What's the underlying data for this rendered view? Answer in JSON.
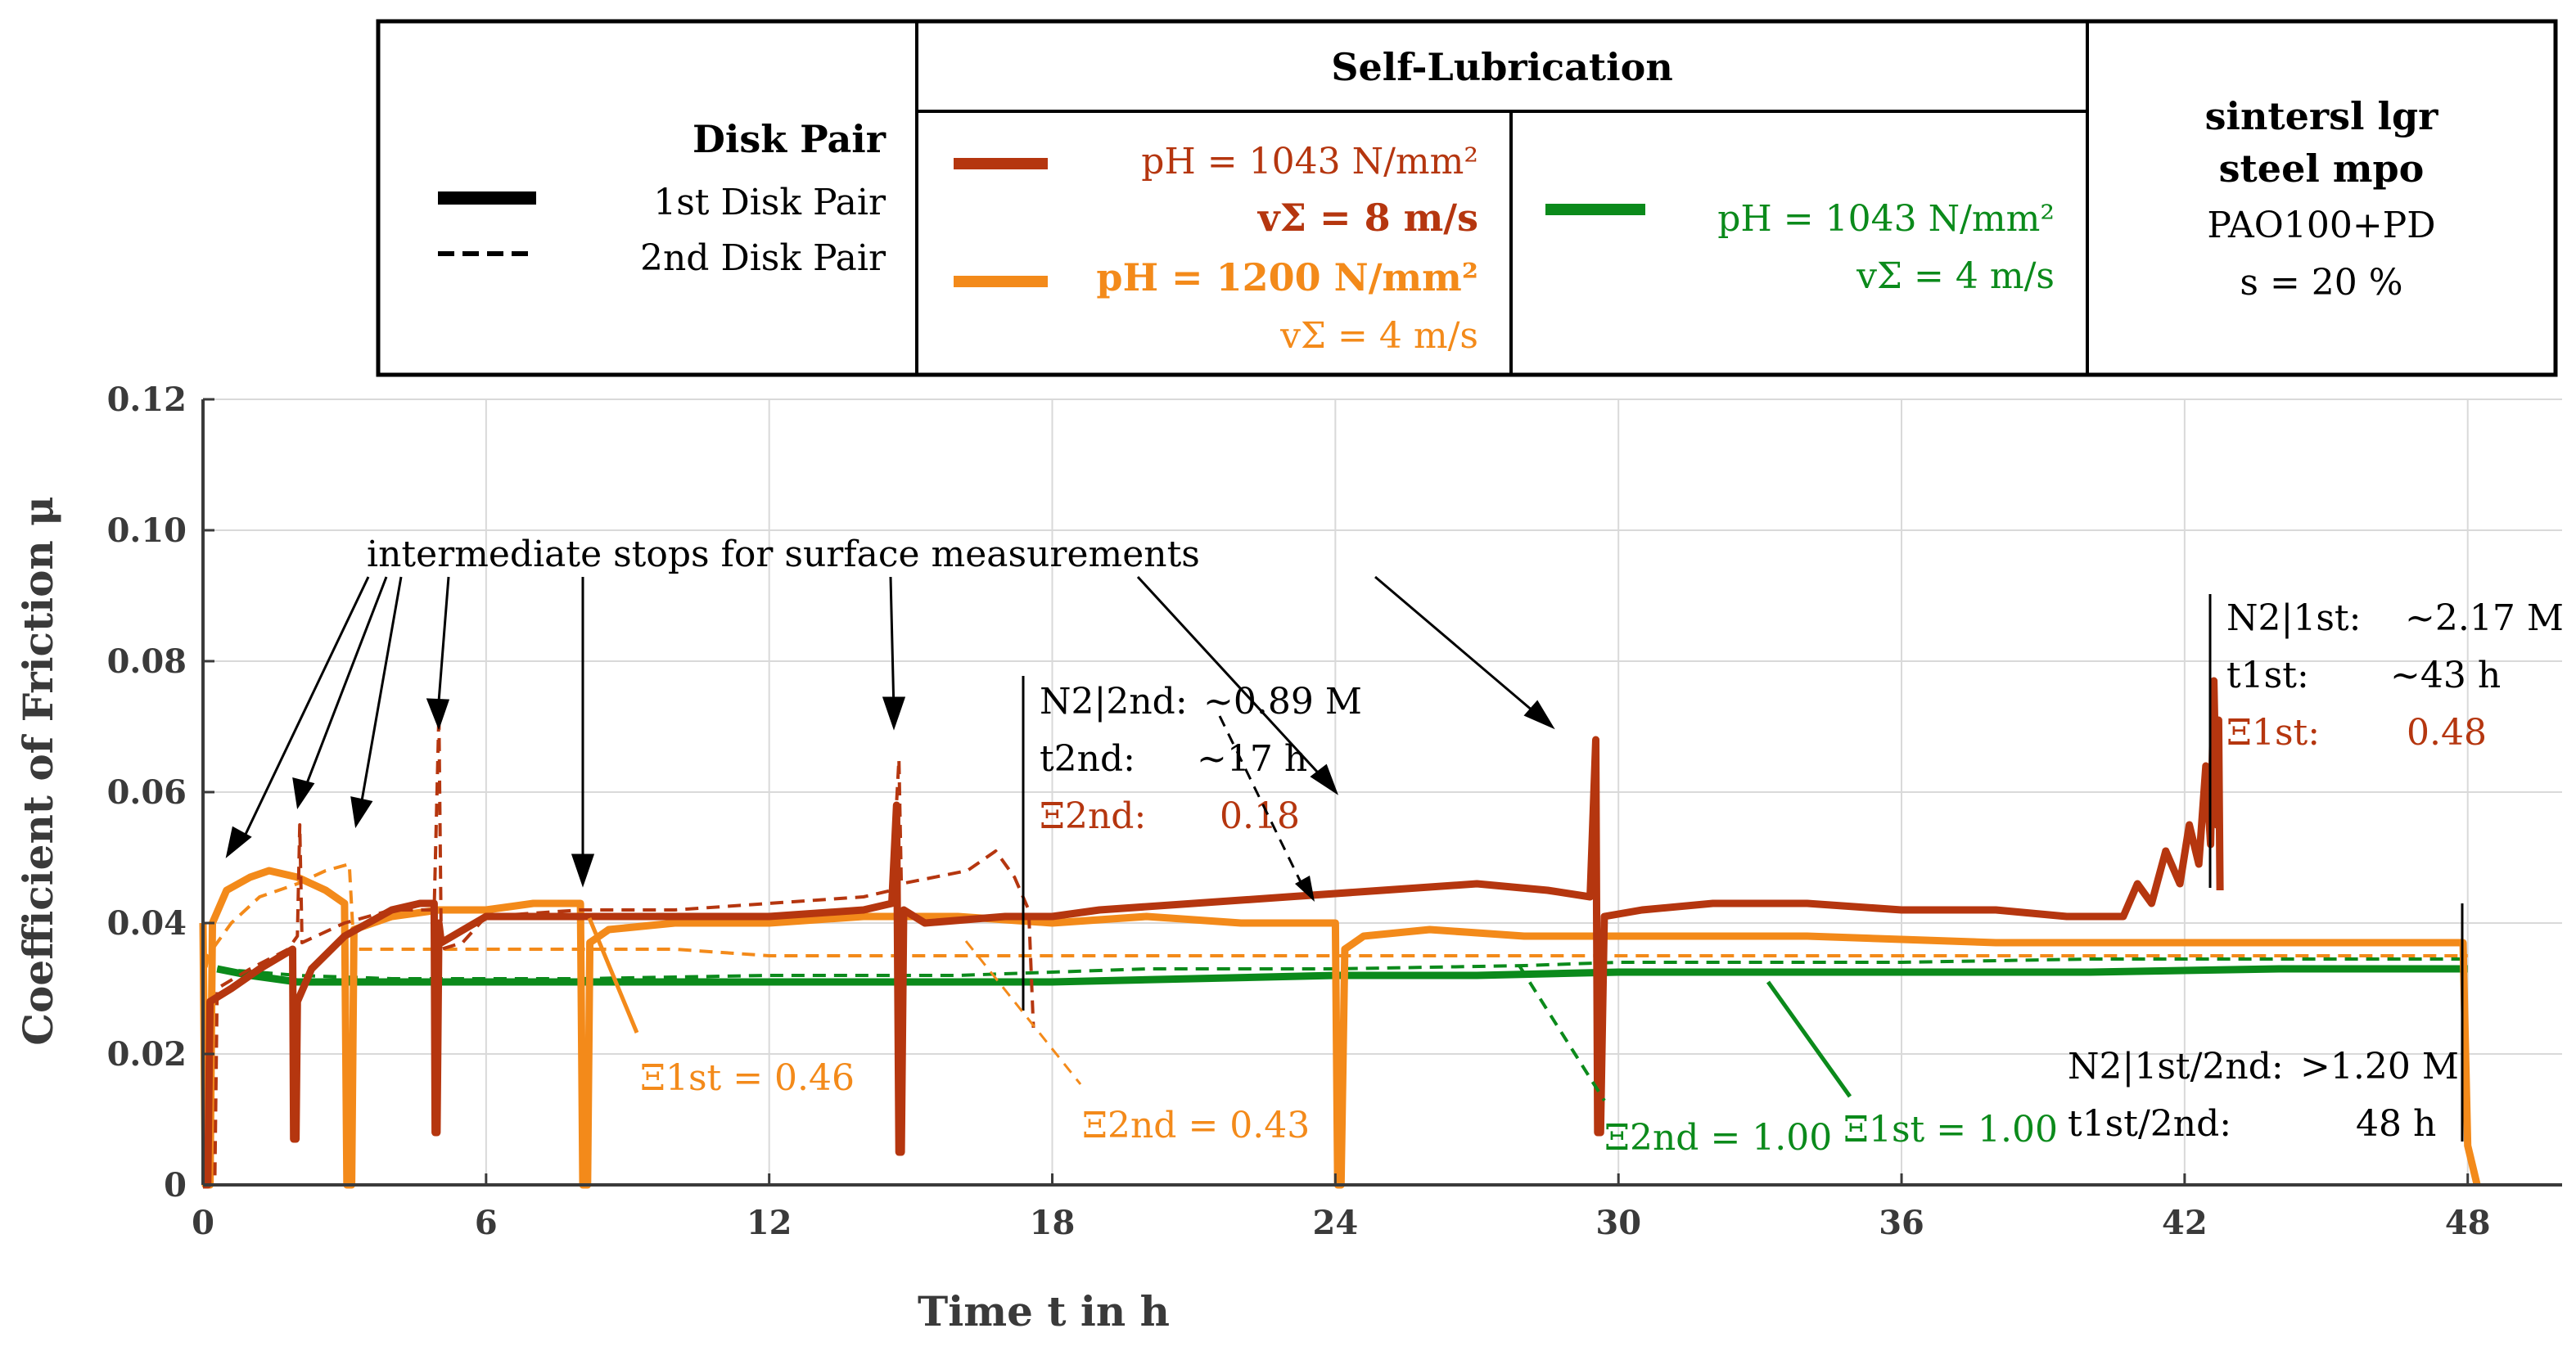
{
  "colors": {
    "red": "#b5360f",
    "orange": "#f38a1a",
    "green": "#0b8a1b",
    "black": "#000000",
    "grid": "#d9d9d9",
    "axis": "#3a3a3a"
  },
  "legend": {
    "disk_pair_title": "Disk Pair",
    "first_disk_pair": "1st Disk Pair",
    "second_disk_pair": "2nd Disk Pair",
    "self_lubrication_title": "Self-Lubrication",
    "red_pressure": "pH = 1043 N/mm²",
    "red_speed": "vΣ = 8 m/s",
    "orange_pressure": "pH = 1200 N/mm²",
    "orange_speed": "vΣ = 4 m/s",
    "green_pressure": "pH = 1043 N/mm²",
    "green_speed": "vΣ = 4 m/s",
    "material_line1": "sintersl lgr",
    "material_line2": "steel mpo",
    "lubricant": "PAO100+PD",
    "slip": "s = 20 %"
  },
  "annotations": {
    "intermediate_stops": "intermediate stops for surface measurements",
    "second_N_label": "N2|2nd:",
    "second_N_value": "~0.89 M",
    "second_t_label": "t2nd:",
    "second_t_value": "~17 h",
    "second_xi_label": "Ξ2nd:",
    "second_xi_value": "0.18",
    "first_N_label": "N2|1st:",
    "first_N_value": "~2.17 M",
    "first_t_label": "t1st:",
    "first_t_value": "~43 h",
    "first_xi_label": "Ξ1st:",
    "first_xi_value": "0.48",
    "orange_xi_first": "Ξ1st = 0.46",
    "orange_xi_second": "Ξ2nd = 0.43",
    "green_xi_second": "Ξ2nd = 1.00",
    "green_xi_first": "Ξ1st = 1.00",
    "both_N_label": "N2|1st/2nd:",
    "both_N_value": ">1.20 M",
    "both_t_label": "t1st/2nd:",
    "both_t_value": "48 h"
  },
  "chart_data": {
    "type": "line",
    "title": "",
    "xlabel": "Time t in h",
    "ylabel": "Coefficient of Friction μ",
    "xlim": [
      0,
      50
    ],
    "ylim": [
      0,
      0.12
    ],
    "xticks": [
      0,
      6,
      12,
      18,
      24,
      30,
      36,
      42,
      48
    ],
    "yticks": [
      0,
      0.02,
      0.04,
      0.06,
      0.08,
      0.1,
      0.12
    ],
    "ytick_labels": [
      "0",
      "0.02",
      "0.04",
      "0.06",
      "0.08",
      "0.10",
      "0.12"
    ],
    "grid": true,
    "series": [
      {
        "name": "pH = 1043 N/mm², vΣ = 8 m/s, 1st Disk Pair",
        "color": "red",
        "style": "solid",
        "points": [
          [
            0,
            0
          ],
          [
            0.1,
            0
          ],
          [
            0.15,
            0.028
          ],
          [
            0.6,
            0.03
          ],
          [
            1.2,
            0.033
          ],
          [
            1.9,
            0.036
          ],
          [
            1.92,
            0.007
          ],
          [
            1.97,
            0.007
          ],
          [
            2.0,
            0.028
          ],
          [
            2.3,
            0.033
          ],
          [
            3.0,
            0.038
          ],
          [
            3.5,
            0.04
          ],
          [
            4,
            0.042
          ],
          [
            4.6,
            0.043
          ],
          [
            4.9,
            0.043
          ],
          [
            4.92,
            0.008
          ],
          [
            4.96,
            0.008
          ],
          [
            5.0,
            0.04
          ],
          [
            5.05,
            0.037
          ],
          [
            6,
            0.041
          ],
          [
            8,
            0.041
          ],
          [
            10,
            0.041
          ],
          [
            12,
            0.041
          ],
          [
            14,
            0.042
          ],
          [
            14.6,
            0.043
          ],
          [
            14.7,
            0.058
          ],
          [
            14.75,
            0.005
          ],
          [
            14.8,
            0.005
          ],
          [
            14.85,
            0.042
          ],
          [
            15.3,
            0.04
          ],
          [
            17,
            0.041
          ],
          [
            18,
            0.041
          ],
          [
            19,
            0.042
          ],
          [
            21,
            0.043
          ],
          [
            23,
            0.044
          ],
          [
            25,
            0.045
          ],
          [
            27,
            0.046
          ],
          [
            28.5,
            0.045
          ],
          [
            29.4,
            0.044
          ],
          [
            29.52,
            0.068
          ],
          [
            29.56,
            0.008
          ],
          [
            29.62,
            0.008
          ],
          [
            29.7,
            0.041
          ],
          [
            30.5,
            0.042
          ],
          [
            32,
            0.043
          ],
          [
            34,
            0.043
          ],
          [
            36,
            0.042
          ],
          [
            38,
            0.042
          ],
          [
            39.5,
            0.041
          ],
          [
            40.7,
            0.041
          ],
          [
            41.0,
            0.046
          ],
          [
            41.3,
            0.043
          ],
          [
            41.6,
            0.051
          ],
          [
            41.9,
            0.046
          ],
          [
            42.1,
            0.055
          ],
          [
            42.3,
            0.049
          ],
          [
            42.45,
            0.064
          ],
          [
            42.55,
            0.052
          ],
          [
            42.62,
            0.077
          ],
          [
            42.68,
            0.055
          ],
          [
            42.72,
            0.071
          ],
          [
            42.75,
            0.045
          ]
        ]
      },
      {
        "name": "pH = 1043 N/mm², vΣ = 8 m/s, 2nd Disk Pair",
        "color": "red",
        "style": "dashed",
        "points": [
          [
            0,
            0
          ],
          [
            0.25,
            0
          ],
          [
            0.3,
            0.03
          ],
          [
            1.0,
            0.033
          ],
          [
            1.8,
            0.036
          ],
          [
            2.0,
            0.038
          ],
          [
            2.05,
            0.055
          ],
          [
            2.1,
            0.037
          ],
          [
            3,
            0.04
          ],
          [
            4,
            0.042
          ],
          [
            4.9,
            0.042
          ],
          [
            5.0,
            0.072
          ],
          [
            5.05,
            0.036
          ],
          [
            5.5,
            0.037
          ],
          [
            6,
            0.041
          ],
          [
            8,
            0.042
          ],
          [
            10,
            0.042
          ],
          [
            12,
            0.043
          ],
          [
            14,
            0.044
          ],
          [
            14.6,
            0.045
          ],
          [
            14.75,
            0.065
          ],
          [
            14.8,
            0.046
          ],
          [
            15.5,
            0.047
          ],
          [
            16.2,
            0.048
          ],
          [
            16.8,
            0.051
          ],
          [
            17.2,
            0.047
          ],
          [
            17.5,
            0.042
          ],
          [
            17.6,
            0.024
          ]
        ]
      },
      {
        "name": "pH = 1200 N/mm², vΣ = 4 m/s, 1st Disk Pair",
        "color": "orange",
        "style": "solid",
        "points": [
          [
            0,
            0.04
          ],
          [
            0.05,
            0.0
          ],
          [
            0.15,
            0.0
          ],
          [
            0.2,
            0.04
          ],
          [
            0.5,
            0.045
          ],
          [
            1.0,
            0.047
          ],
          [
            1.4,
            0.048
          ],
          [
            2,
            0.047
          ],
          [
            2.6,
            0.045
          ],
          [
            3.0,
            0.043
          ],
          [
            3.05,
            0.0
          ],
          [
            3.15,
            0.0
          ],
          [
            3.2,
            0.039
          ],
          [
            4,
            0.041
          ],
          [
            5,
            0.042
          ],
          [
            6,
            0.042
          ],
          [
            7,
            0.043
          ],
          [
            8.0,
            0.043
          ],
          [
            8.05,
            0.0
          ],
          [
            8.15,
            0.0
          ],
          [
            8.2,
            0.037
          ],
          [
            8.6,
            0.039
          ],
          [
            10,
            0.04
          ],
          [
            12,
            0.04
          ],
          [
            14,
            0.041
          ],
          [
            16,
            0.041
          ],
          [
            18,
            0.04
          ],
          [
            20,
            0.041
          ],
          [
            22,
            0.04
          ],
          [
            24.0,
            0.04
          ],
          [
            24.05,
            0.0
          ],
          [
            24.12,
            0.0
          ],
          [
            24.2,
            0.036
          ],
          [
            24.6,
            0.038
          ],
          [
            26,
            0.039
          ],
          [
            28,
            0.038
          ],
          [
            30,
            0.038
          ],
          [
            34,
            0.038
          ],
          [
            38,
            0.037
          ],
          [
            42,
            0.037
          ],
          [
            47.9,
            0.037
          ],
          [
            48.0,
            0.006
          ],
          [
            48.2,
            0.0
          ]
        ]
      },
      {
        "name": "pH = 1200 N/mm², vΣ = 4 m/s, 2nd Disk Pair",
        "color": "orange",
        "style": "dashed",
        "points": [
          [
            0,
            0.03
          ],
          [
            0.1,
            0.035
          ],
          [
            0.6,
            0.04
          ],
          [
            1.2,
            0.044
          ],
          [
            2.0,
            0.046
          ],
          [
            2.6,
            0.048
          ],
          [
            3.1,
            0.049
          ],
          [
            3.2,
            0.036
          ],
          [
            4,
            0.036
          ],
          [
            6,
            0.036
          ],
          [
            8,
            0.036
          ],
          [
            10,
            0.036
          ],
          [
            12,
            0.035
          ],
          [
            16,
            0.035
          ],
          [
            20,
            0.035
          ],
          [
            24,
            0.035
          ],
          [
            24.3,
            0.035
          ],
          [
            26,
            0.035
          ],
          [
            30,
            0.035
          ],
          [
            36,
            0.035
          ],
          [
            40,
            0.035
          ],
          [
            48,
            0.035
          ]
        ]
      },
      {
        "name": "pH = 1043 N/mm², vΣ = 4 m/s, 1st Disk Pair",
        "color": "green",
        "style": "solid",
        "points": [
          [
            0.3,
            0.033
          ],
          [
            1,
            0.032
          ],
          [
            2,
            0.031
          ],
          [
            4,
            0.031
          ],
          [
            6,
            0.031
          ],
          [
            8,
            0.031
          ],
          [
            10,
            0.031
          ],
          [
            12,
            0.031
          ],
          [
            15,
            0.031
          ],
          [
            18,
            0.031
          ],
          [
            21,
            0.0315
          ],
          [
            24,
            0.032
          ],
          [
            27,
            0.032
          ],
          [
            30,
            0.0325
          ],
          [
            33,
            0.0325
          ],
          [
            36,
            0.0325
          ],
          [
            40,
            0.0325
          ],
          [
            44,
            0.033
          ],
          [
            48,
            0.033
          ]
        ]
      },
      {
        "name": "pH = 1043 N/mm², vΣ = 4 m/s, 2nd Disk Pair",
        "color": "green",
        "style": "dashed",
        "points": [
          [
            0.3,
            0.033
          ],
          [
            2,
            0.032
          ],
          [
            4,
            0.0315
          ],
          [
            8,
            0.0315
          ],
          [
            12,
            0.032
          ],
          [
            16,
            0.032
          ],
          [
            18,
            0.0325
          ],
          [
            20,
            0.033
          ],
          [
            24,
            0.033
          ],
          [
            28,
            0.0335
          ],
          [
            30,
            0.034
          ],
          [
            32,
            0.034
          ],
          [
            36,
            0.034
          ],
          [
            40,
            0.0345
          ],
          [
            44,
            0.0345
          ],
          [
            48,
            0.0345
          ]
        ]
      }
    ]
  }
}
